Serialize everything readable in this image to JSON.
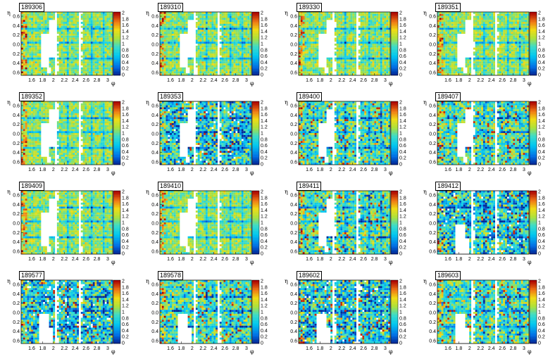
{
  "chart_data": {
    "type": "heatmap",
    "xlabel": "φ",
    "ylabel": "η",
    "x_tick_labels": [
      "1.6",
      "1.8",
      "2",
      "2.2",
      "2.4",
      "2.6",
      "2.8",
      "3"
    ],
    "y_tick_labels": [
      "0.6",
      "0.4",
      "0.2",
      "0.0",
      "0.2",
      "0.4",
      "0.6"
    ],
    "colorbar_ticks": [
      "2",
      "1.8",
      "1.6",
      "1.4",
      "1.2",
      "1",
      "0.8",
      "0.6",
      "0.4",
      "0.2",
      "0"
    ],
    "zlim": [
      0,
      2
    ],
    "panels": [
      {
        "run": "189306",
        "noise": "low",
        "holes": "left"
      },
      {
        "run": "189310",
        "noise": "low",
        "holes": "left"
      },
      {
        "run": "189330",
        "noise": "low",
        "holes": "left"
      },
      {
        "run": "189351",
        "noise": "low",
        "holes": "left"
      },
      {
        "run": "189352",
        "noise": "low",
        "holes": "left"
      },
      {
        "run": "189353",
        "noise": "high",
        "holes": "left"
      },
      {
        "run": "189400",
        "noise": "medium",
        "holes": "left"
      },
      {
        "run": "189407",
        "noise": "medium",
        "holes": "left"
      },
      {
        "run": "189409",
        "noise": "low",
        "holes": "left"
      },
      {
        "run": "189410",
        "noise": "low",
        "holes": "left"
      },
      {
        "run": "189411",
        "noise": "medium",
        "holes": "left"
      },
      {
        "run": "189412",
        "noise": "high",
        "holes": "center"
      },
      {
        "run": "189577",
        "noise": "high",
        "holes": "center"
      },
      {
        "run": "189578",
        "noise": "medium",
        "holes": "center"
      },
      {
        "run": "189602",
        "noise": "high",
        "holes": "center"
      },
      {
        "run": "189603",
        "noise": "medium",
        "holes": "center"
      }
    ]
  }
}
